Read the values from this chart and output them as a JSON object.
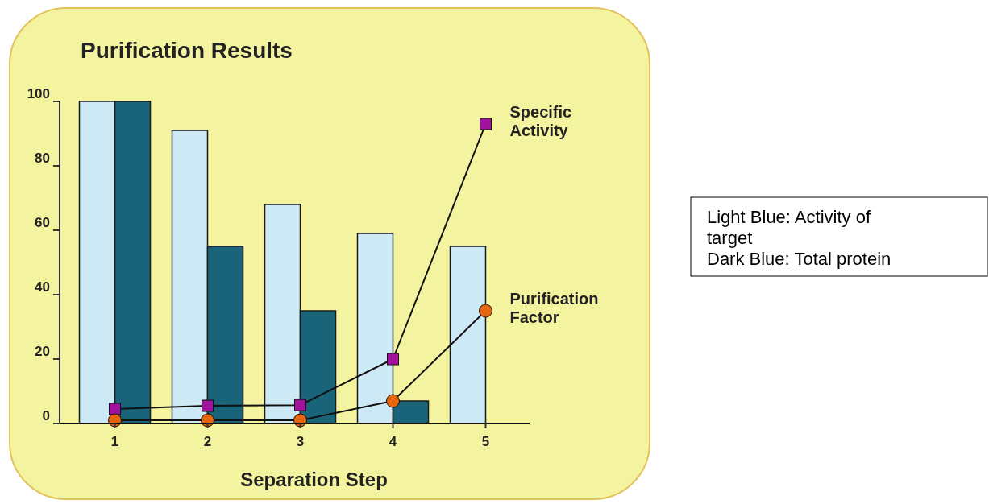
{
  "chart_data": {
    "type": "bar",
    "title": "Purification Results",
    "xlabel": "Separation Step",
    "categories": [
      "1",
      "2",
      "3",
      "4",
      "5"
    ],
    "series": [
      {
        "color": "#cce9f5",
        "values": [
          100,
          91,
          68,
          59,
          55
        ]
      },
      {
        "color": "#196478",
        "values": [
          100,
          55,
          35,
          7,
          null
        ]
      },
      {
        "type": "line",
        "name": "Specific Activity",
        "color": "#a2119e",
        "marker": "square",
        "values": [
          4.5,
          5.5,
          5.7,
          20,
          93
        ]
      },
      {
        "type": "line",
        "name": "Purification Factor",
        "color": "#e8650f",
        "marker": "circle",
        "values": [
          1,
          1,
          1,
          7,
          35
        ]
      }
    ],
    "ylim": [
      0,
      100
    ],
    "yticks": [
      0,
      20,
      40,
      60,
      80,
      100
    ],
    "grid": false,
    "annotations": [
      "Light Blue: Activity of target",
      "Dark Blue: Total protein"
    ]
  }
}
